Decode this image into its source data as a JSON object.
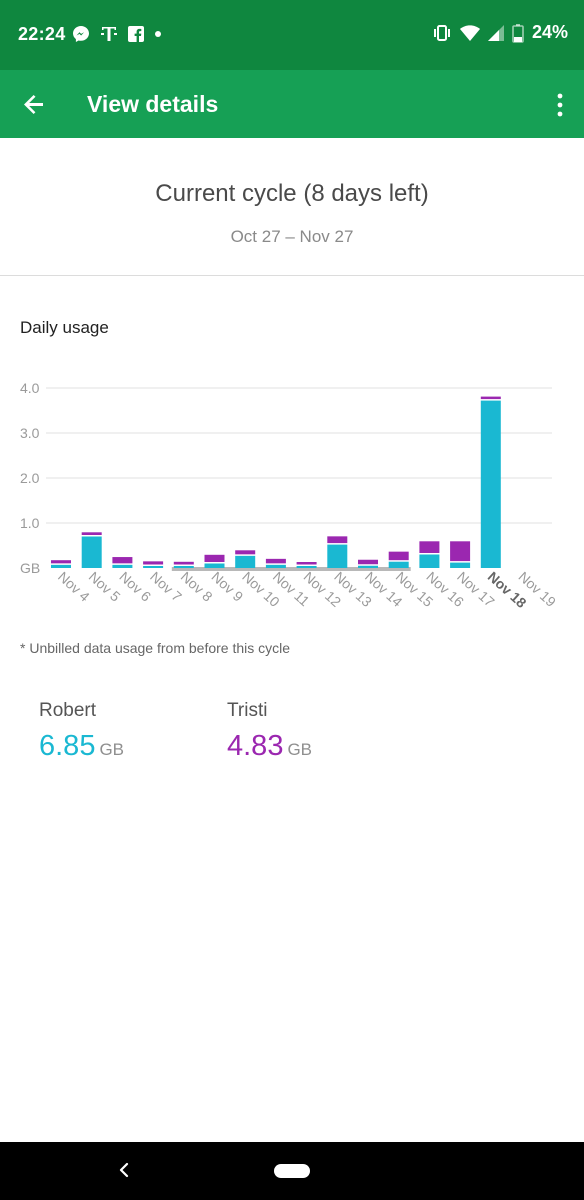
{
  "status_bar": {
    "time": "22:24",
    "battery": "24%",
    "left_icons": [
      "messenger-icon",
      "t-mobile-icon",
      "facebook-icon",
      "dot-icon"
    ],
    "right_icons": [
      "vibrate-icon",
      "wifi-icon",
      "signal-icon",
      "battery-icon"
    ]
  },
  "app_bar": {
    "title": "View details",
    "color": "#16a055"
  },
  "cycle": {
    "title": "Current cycle (8 days left)",
    "range": "Oct 27 – Nov 27"
  },
  "daily_usage_title": "Daily usage",
  "chart_data": {
    "type": "bar",
    "stacked": true,
    "categories": [
      "Nov 4",
      "Nov 5",
      "Nov 6",
      "Nov 7",
      "Nov 8",
      "Nov 9",
      "Nov 10",
      "Nov 11",
      "Nov 12",
      "Nov 13",
      "Nov 14",
      "Nov 15",
      "Nov 16",
      "Nov 17",
      "Nov 18",
      "Nov 19"
    ],
    "highlight_category": "Nov 18",
    "series": [
      {
        "name": "Robert",
        "color": "#1ab8d2",
        "values": [
          0.07,
          0.7,
          0.07,
          0.04,
          0.03,
          0.1,
          0.27,
          0.07,
          0.02,
          0.52,
          0.05,
          0.14,
          0.3,
          0.12,
          3.72,
          0
        ]
      },
      {
        "name": "Tristi",
        "color": "#9b27b0",
        "values": [
          0.07,
          0.06,
          0.14,
          0.07,
          0.06,
          0.16,
          0.09,
          0.1,
          0.03,
          0.15,
          0.1,
          0.19,
          0.26,
          0.44,
          0.02,
          0
        ]
      }
    ],
    "ylabel": "GB",
    "yticks": [
      "GB",
      "1.0",
      "2.0",
      "3.0",
      "4.0"
    ],
    "ylim": [
      0,
      4.0
    ],
    "grid": true,
    "unbilled_marker_range": [
      "Nov 8",
      "Nov 15"
    ]
  },
  "note": "* Unbilled data usage from before this cycle",
  "users": [
    {
      "name": "Robert",
      "amount": "6.85",
      "unit": "GB",
      "color": "#1ab8d2"
    },
    {
      "name": "Tristi",
      "amount": "4.83",
      "unit": "GB",
      "color": "#9b27b0"
    }
  ]
}
